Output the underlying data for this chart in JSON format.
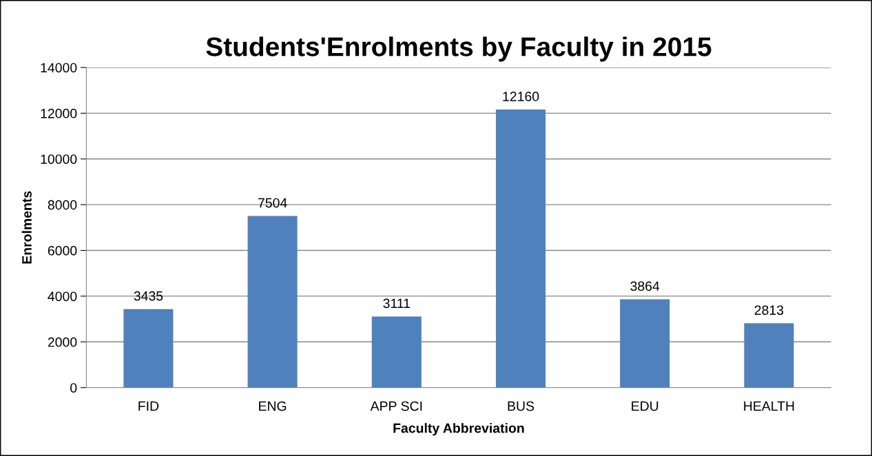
{
  "chart_data": {
    "type": "bar",
    "title": "Students'Enrolments by Faculty in 2015",
    "xlabel": "Faculty Abbreviation",
    "ylabel": "Enrolments",
    "categories": [
      "FID",
      "ENG",
      "APP SCI",
      "BUS",
      "EDU",
      "HEALTH"
    ],
    "values": [
      3435,
      7504,
      3111,
      12160,
      3864,
      2813
    ],
    "color": "#4f81bd",
    "ylim": [
      0,
      14000
    ],
    "yticks": [
      0,
      2000,
      4000,
      6000,
      8000,
      10000,
      12000,
      14000
    ],
    "grid": "y",
    "data_labels": true
  }
}
